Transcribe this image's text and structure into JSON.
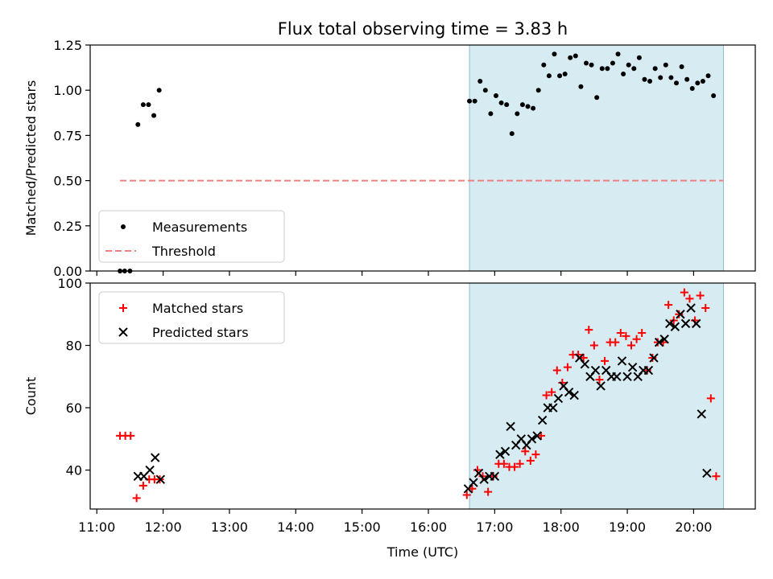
{
  "title": "Flux total observing time = 3.83 h",
  "chart_data": [
    {
      "type": "scatter",
      "panel": "top",
      "ylabel": "Matched/Predicted stars",
      "xlabel": "",
      "xlim": [
        10.9,
        20.93
      ],
      "ylim": [
        0,
        1.25
      ],
      "yticks": [
        0,
        0.25,
        0.5,
        0.75,
        1.0,
        1.25
      ],
      "ytick_labels": [
        "0.00",
        "0.25",
        "0.50",
        "0.75",
        "1.00",
        "1.25"
      ],
      "shaded_span": [
        16.62,
        20.45
      ],
      "threshold": {
        "value": 0.5,
        "x_range": [
          11.35,
          20.45
        ],
        "color": "#f08080"
      },
      "legend": {
        "position": "lower-left",
        "entries": [
          "Measurements",
          "Threshold"
        ]
      },
      "series": [
        {
          "name": "Measurements",
          "color": "#000000",
          "marker": "dot",
          "points": [
            [
              11.35,
              0
            ],
            [
              11.42,
              0
            ],
            [
              11.5,
              0
            ],
            [
              11.62,
              0.81
            ],
            [
              11.7,
              0.92
            ],
            [
              11.78,
              0.92
            ],
            [
              11.86,
              0.86
            ],
            [
              11.94,
              1.0
            ],
            [
              16.62,
              0.94
            ],
            [
              16.7,
              0.94
            ],
            [
              16.78,
              1.05
            ],
            [
              16.86,
              1.0
            ],
            [
              16.94,
              0.87
            ],
            [
              17.02,
              0.97
            ],
            [
              17.1,
              0.93
            ],
            [
              17.18,
              0.92
            ],
            [
              17.26,
              0.76
            ],
            [
              17.34,
              0.87
            ],
            [
              17.42,
              0.92
            ],
            [
              17.5,
              0.91
            ],
            [
              17.58,
              0.9
            ],
            [
              17.66,
              1.0
            ],
            [
              17.74,
              1.14
            ],
            [
              17.82,
              1.08
            ],
            [
              17.9,
              1.2
            ],
            [
              17.98,
              1.08
            ],
            [
              18.06,
              1.09
            ],
            [
              18.14,
              1.18
            ],
            [
              18.22,
              1.19
            ],
            [
              18.3,
              1.02
            ],
            [
              18.38,
              1.15
            ],
            [
              18.46,
              1.14
            ],
            [
              18.54,
              0.96
            ],
            [
              18.62,
              1.12
            ],
            [
              18.7,
              1.12
            ],
            [
              18.78,
              1.15
            ],
            [
              18.86,
              1.2
            ],
            [
              18.94,
              1.09
            ],
            [
              19.02,
              1.14
            ],
            [
              19.1,
              1.12
            ],
            [
              19.18,
              1.18
            ],
            [
              19.26,
              1.06
            ],
            [
              19.34,
              1.05
            ],
            [
              19.42,
              1.12
            ],
            [
              19.5,
              1.07
            ],
            [
              19.58,
              1.14
            ],
            [
              19.66,
              1.07
            ],
            [
              19.74,
              1.04
            ],
            [
              19.82,
              1.13
            ],
            [
              19.9,
              1.06
            ],
            [
              19.98,
              1.01
            ],
            [
              20.06,
              1.04
            ],
            [
              20.14,
              1.05
            ],
            [
              20.22,
              1.08
            ],
            [
              20.3,
              0.97
            ]
          ]
        }
      ]
    },
    {
      "type": "scatter",
      "panel": "bottom",
      "ylabel": "Count",
      "xlabel": "Time (UTC)",
      "xlim": [
        10.9,
        20.93
      ],
      "ylim": [
        27.5,
        100
      ],
      "yticks": [
        40,
        60,
        80,
        100
      ],
      "ytick_labels": [
        "40",
        "60",
        "80",
        "100"
      ],
      "xticks": [
        11,
        12,
        13,
        14,
        15,
        16,
        17,
        18,
        19,
        20
      ],
      "xtick_labels": [
        "11:00",
        "12:00",
        "13:00",
        "14:00",
        "15:00",
        "16:00",
        "17:00",
        "18:00",
        "19:00",
        "20:00"
      ],
      "shaded_span": [
        16.62,
        20.45
      ],
      "legend": {
        "position": "upper-left",
        "entries": [
          "Matched stars",
          "Predicted stars"
        ]
      },
      "series": [
        {
          "name": "Matched stars",
          "color": "#ff0000",
          "marker": "plus",
          "points": [
            [
              11.35,
              51
            ],
            [
              11.43,
              51
            ],
            [
              11.51,
              51
            ],
            [
              11.6,
              31
            ],
            [
              11.7,
              35
            ],
            [
              11.79,
              37
            ],
            [
              11.87,
              37
            ],
            [
              11.95,
              37
            ],
            [
              16.58,
              32
            ],
            [
              16.66,
              34
            ],
            [
              16.74,
              40
            ],
            [
              16.82,
              38
            ],
            [
              16.9,
              33
            ],
            [
              16.98,
              38
            ],
            [
              17.06,
              42
            ],
            [
              17.14,
              42
            ],
            [
              17.22,
              41
            ],
            [
              17.3,
              41
            ],
            [
              17.38,
              42
            ],
            [
              17.46,
              46
            ],
            [
              17.54,
              43
            ],
            [
              17.62,
              45
            ],
            [
              17.7,
              51
            ],
            [
              17.78,
              64
            ],
            [
              17.86,
              65
            ],
            [
              17.94,
              72
            ],
            [
              18.02,
              68
            ],
            [
              18.1,
              73
            ],
            [
              18.18,
              77
            ],
            [
              18.26,
              77
            ],
            [
              18.34,
              76
            ],
            [
              18.42,
              85
            ],
            [
              18.5,
              80
            ],
            [
              18.58,
              69
            ],
            [
              18.66,
              75
            ],
            [
              18.74,
              81
            ],
            [
              18.82,
              81
            ],
            [
              18.9,
              84
            ],
            [
              18.98,
              83
            ],
            [
              19.06,
              80
            ],
            [
              19.14,
              82
            ],
            [
              19.22,
              84
            ],
            [
              19.3,
              72
            ],
            [
              19.38,
              76
            ],
            [
              19.46,
              81
            ],
            [
              19.54,
              81
            ],
            [
              19.62,
              93
            ],
            [
              19.7,
              88
            ],
            [
              19.78,
              90
            ],
            [
              19.86,
              97
            ],
            [
              19.94,
              95
            ],
            [
              20.02,
              88
            ],
            [
              20.1,
              96
            ],
            [
              20.18,
              92
            ],
            [
              20.26,
              63
            ],
            [
              20.34,
              38
            ]
          ]
        },
        {
          "name": "Predicted stars",
          "color": "#000000",
          "marker": "x",
          "points": [
            [
              11.62,
              38
            ],
            [
              11.71,
              38
            ],
            [
              11.8,
              40
            ],
            [
              11.88,
              44
            ],
            [
              11.96,
              37
            ],
            [
              16.6,
              34
            ],
            [
              16.68,
              36
            ],
            [
              16.76,
              39
            ],
            [
              16.84,
              37
            ],
            [
              16.92,
              38
            ],
            [
              17.0,
              38
            ],
            [
              17.08,
              45
            ],
            [
              17.16,
              46
            ],
            [
              17.24,
              54
            ],
            [
              17.32,
              48
            ],
            [
              17.4,
              50
            ],
            [
              17.48,
              48
            ],
            [
              17.56,
              50
            ],
            [
              17.64,
              51
            ],
            [
              17.72,
              56
            ],
            [
              17.8,
              60
            ],
            [
              17.88,
              60
            ],
            [
              17.96,
              63
            ],
            [
              18.04,
              67
            ],
            [
              18.12,
              65
            ],
            [
              18.2,
              64
            ],
            [
              18.28,
              76
            ],
            [
              18.36,
              74
            ],
            [
              18.44,
              70
            ],
            [
              18.52,
              72
            ],
            [
              18.6,
              67
            ],
            [
              18.68,
              72
            ],
            [
              18.76,
              70
            ],
            [
              18.84,
              70
            ],
            [
              18.92,
              75
            ],
            [
              19.0,
              70
            ],
            [
              19.08,
              73
            ],
            [
              19.16,
              70
            ],
            [
              19.24,
              72
            ],
            [
              19.32,
              72
            ],
            [
              19.4,
              76
            ],
            [
              19.48,
              81
            ],
            [
              19.56,
              82
            ],
            [
              19.64,
              87
            ],
            [
              19.72,
              86
            ],
            [
              19.8,
              90
            ],
            [
              19.88,
              87
            ],
            [
              19.96,
              92
            ],
            [
              20.04,
              87
            ],
            [
              20.12,
              58
            ],
            [
              20.2,
              39
            ]
          ]
        }
      ]
    }
  ]
}
